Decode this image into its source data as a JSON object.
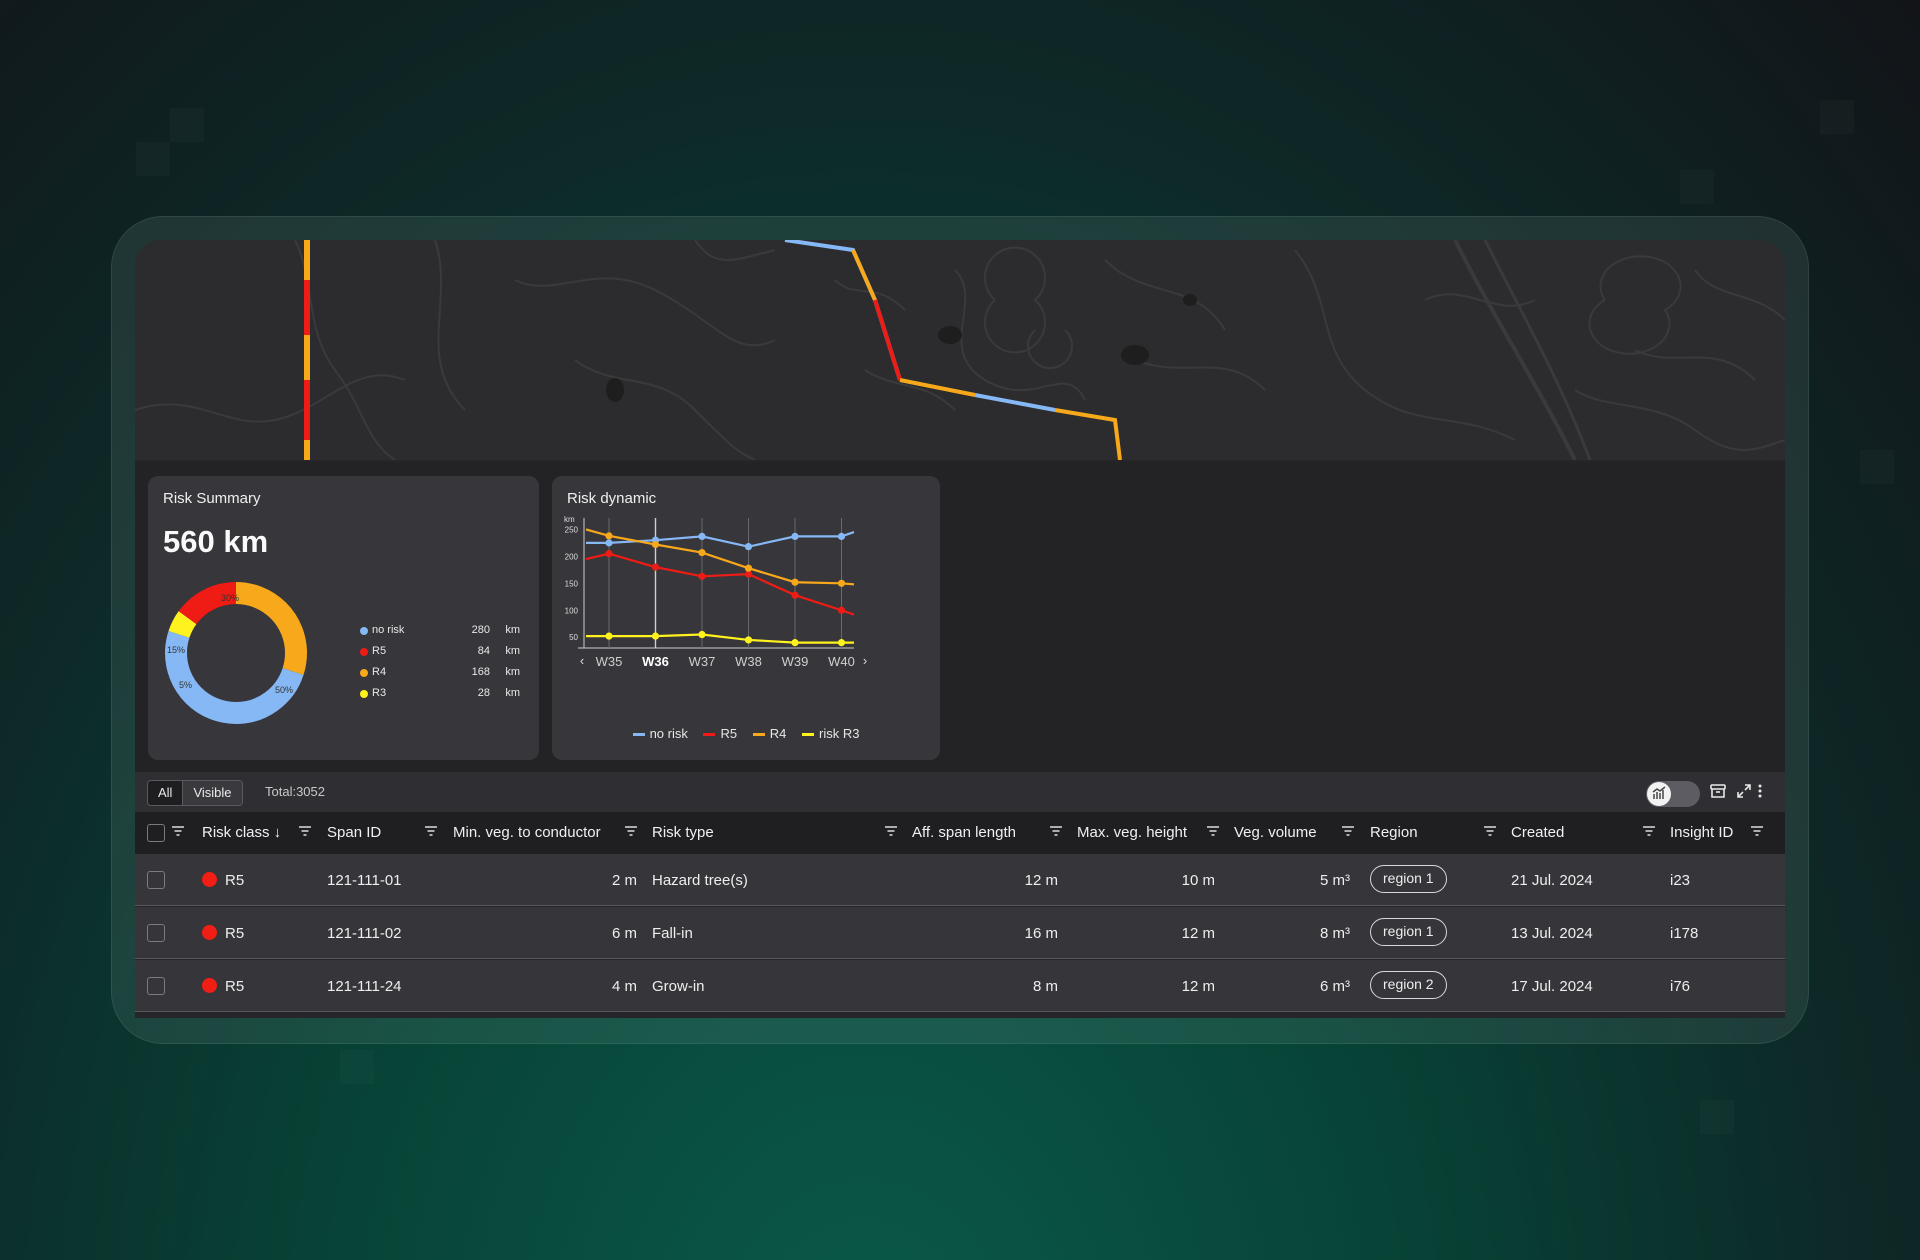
{
  "risk_summary": {
    "title": "Risk Summary",
    "total": "560 km",
    "legend": [
      {
        "label": "no risk",
        "value": "280",
        "unit": "km",
        "color": "#85b8f5"
      },
      {
        "label": "R5",
        "value": "84",
        "unit": "km",
        "color": "#ee1c14"
      },
      {
        "label": "R4",
        "value": "168",
        "unit": "km",
        "color": "#f7a81b"
      },
      {
        "label": "R3",
        "value": "28",
        "unit": "km",
        "color": "#fff21e"
      }
    ],
    "donut_labels": {
      "r4": "30%",
      "r5": "15%",
      "r3": "5%",
      "norisk": "50%"
    }
  },
  "risk_dynamic": {
    "title": "Risk dynamic",
    "legend": [
      "no risk",
      "R5",
      "R4",
      "risk R3"
    ]
  },
  "chart_data": {
    "type": "line",
    "ylabel": "km",
    "x": [
      "W35",
      "W36",
      "W37",
      "W38",
      "W39",
      "W40"
    ],
    "yticks": [
      50,
      100,
      150,
      200,
      250
    ],
    "ylim": [
      30,
      260
    ],
    "selected_x": "W36",
    "series": [
      {
        "name": "no risk",
        "color": "#85b8f5",
        "values": [
          225,
          230,
          237,
          218,
          237,
          237
        ],
        "start": 225,
        "end": 245
      },
      {
        "name": "R5",
        "color": "#ee1c14",
        "values": [
          205,
          180,
          163,
          167,
          128,
          100
        ],
        "start": 195,
        "end": 92
      },
      {
        "name": "R4",
        "color": "#f7a81b",
        "values": [
          238,
          222,
          207,
          178,
          152,
          150
        ],
        "start": 250,
        "end": 148
      },
      {
        "name": "risk R3",
        "color": "#fff21e",
        "values": [
          52,
          52,
          55,
          45,
          40,
          40
        ],
        "start": 52,
        "end": 40
      }
    ]
  },
  "toolbar": {
    "tab_all": "All",
    "tab_visible": "Visible",
    "total": "Total:3052"
  },
  "table": {
    "columns": {
      "risk_class": "Risk class ↓",
      "span_id": "Span ID",
      "min_veg": "Min. veg. to conductor",
      "risk_type": "Risk type",
      "aff_span": "Aff. span length",
      "max_veg": "Max. veg. height",
      "veg_volume": "Veg. volume",
      "region": "Region",
      "created": "Created",
      "insight_id": "Insight ID"
    },
    "rows": [
      {
        "risk": "R5",
        "span": "121-111-01",
        "min_veg": "2 m",
        "type": "Hazard tree(s)",
        "aff": "12 m",
        "max": "10 m",
        "vol": "5 m³",
        "region": "region 1",
        "created": "21 Jul. 2024",
        "insight": "i23"
      },
      {
        "risk": "R5",
        "span": "121-111-02",
        "min_veg": "6 m",
        "type": "Fall-in",
        "aff": "16 m",
        "max": "12 m",
        "vol": "8 m³",
        "region": "region 1",
        "created": "13 Jul. 2024",
        "insight": "i178"
      },
      {
        "risk": "R5",
        "span": "121-111-24",
        "min_veg": "4 m",
        "type": "Grow-in",
        "aff": "8 m",
        "max": "12 m",
        "vol": "6 m³",
        "region": "region 2",
        "created": "17 Jul. 2024",
        "insight": "i76"
      }
    ]
  }
}
